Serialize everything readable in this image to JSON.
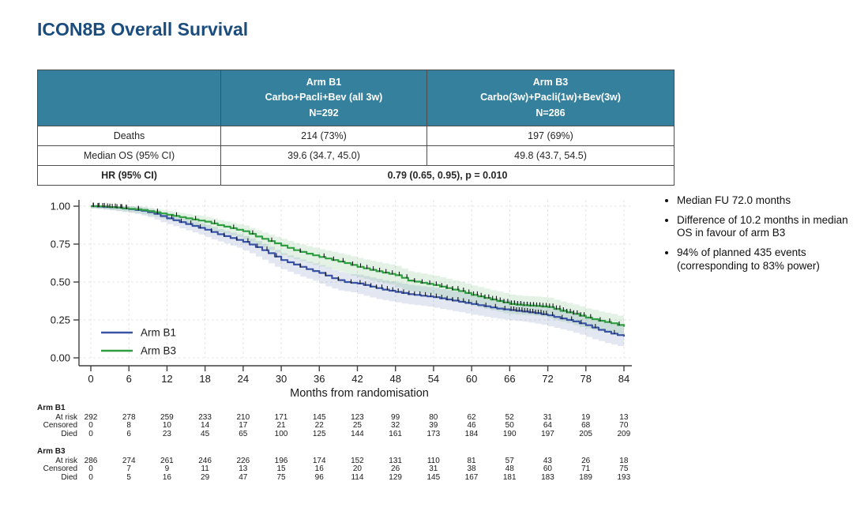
{
  "title": "ICON8B Overall Survival",
  "colors": {
    "title_blue": "#1a4c7d",
    "table_header_teal": "#35809d",
    "arm_b1_blue": "#3953a4",
    "arm_b3_green": "#2f9e41",
    "axis_gray": "#3f3f3f",
    "gridline_gray": "#e4e4e4"
  },
  "summary_table": {
    "col_headers": [
      {
        "arm": "Arm B1",
        "regimen": "Carbo+Pacli+Bev (all 3w)",
        "n": "N=292"
      },
      {
        "arm": "Arm B3",
        "regimen": "Carbo(3w)+Pacli(1w)+Bev(3w)",
        "n": "N=286"
      }
    ],
    "rows": [
      {
        "label": "Deaths",
        "b1": "214 (73%)",
        "b3": "197 (69%)"
      },
      {
        "label": "Median OS (95% CI)",
        "b1": "39.6 (34.7, 45.0)",
        "b3": "49.8 (43.7, 54.5)"
      },
      {
        "label": "HR (95% CI)",
        "combined": "0.79 (0.65, 0.95), p = 0.010"
      }
    ]
  },
  "chart_data": {
    "type": "line",
    "subtype": "kaplan-meier-step-curves-with-confidence-bands",
    "title": "",
    "xlabel": "Months from randomisation",
    "ylabel": "",
    "xlim": [
      0,
      84
    ],
    "ylim": [
      0,
      1
    ],
    "x_ticks": [
      0,
      6,
      12,
      18,
      24,
      30,
      36,
      42,
      48,
      54,
      60,
      66,
      72,
      78,
      84
    ],
    "y_ticks": [
      1.0,
      0.75,
      0.5,
      0.25,
      0.0
    ],
    "y_tick_labels": [
      "1.00",
      "0.75",
      "0.50",
      "0.25",
      "0.00"
    ],
    "grid": true,
    "legend_position": "inside-lower-left",
    "series": [
      {
        "name": "Arm B1",
        "color": "#3953a4",
        "band_opacity": 0.14,
        "x": [
          0,
          2,
          4,
          6,
          8,
          10,
          12,
          14,
          16,
          18,
          20,
          22,
          24,
          26,
          28,
          30,
          32,
          34,
          36,
          38,
          40,
          42,
          44,
          46,
          48,
          50,
          52,
          54,
          56,
          58,
          60,
          62,
          64,
          66,
          68,
          70,
          72,
          74,
          76,
          78,
          80,
          82,
          84
        ],
        "y": [
          1.0,
          0.995,
          0.99,
          0.98,
          0.97,
          0.95,
          0.92,
          0.895,
          0.87,
          0.845,
          0.815,
          0.79,
          0.765,
          0.73,
          0.69,
          0.645,
          0.615,
          0.585,
          0.56,
          0.525,
          0.5,
          0.49,
          0.47,
          0.45,
          0.435,
          0.42,
          0.41,
          0.4,
          0.385,
          0.37,
          0.355,
          0.34,
          0.325,
          0.315,
          0.305,
          0.295,
          0.28,
          0.26,
          0.24,
          0.215,
          0.185,
          0.16,
          0.14
        ]
      },
      {
        "name": "Arm B3",
        "color": "#2f9e41",
        "band_opacity": 0.13,
        "x": [
          0,
          2,
          4,
          6,
          8,
          10,
          12,
          14,
          16,
          18,
          20,
          22,
          24,
          26,
          28,
          30,
          32,
          34,
          36,
          38,
          40,
          42,
          44,
          46,
          48,
          50,
          52,
          54,
          56,
          58,
          60,
          62,
          64,
          66,
          68,
          70,
          72,
          74,
          76,
          78,
          80,
          82,
          84
        ],
        "y": [
          1.0,
          0.998,
          0.99,
          0.983,
          0.975,
          0.96,
          0.944,
          0.928,
          0.912,
          0.898,
          0.875,
          0.855,
          0.835,
          0.8,
          0.77,
          0.74,
          0.71,
          0.687,
          0.665,
          0.645,
          0.625,
          0.6,
          0.58,
          0.562,
          0.545,
          0.51,
          0.495,
          0.48,
          0.46,
          0.44,
          0.415,
          0.395,
          0.375,
          0.355,
          0.347,
          0.342,
          0.335,
          0.31,
          0.29,
          0.265,
          0.245,
          0.228,
          0.205
        ]
      }
    ]
  },
  "risk_table": {
    "time_points": [
      0,
      6,
      12,
      18,
      24,
      30,
      36,
      42,
      48,
      54,
      60,
      66,
      72,
      78,
      84
    ],
    "row_labels": [
      "At risk",
      "Censored",
      "Died"
    ],
    "groups": [
      {
        "name": "Arm B1",
        "at_risk": [
          292,
          278,
          259,
          233,
          210,
          171,
          145,
          123,
          99,
          80,
          62,
          52,
          31,
          19,
          13
        ],
        "censored": [
          0,
          8,
          10,
          14,
          17,
          21,
          22,
          25,
          32,
          39,
          46,
          50,
          64,
          68,
          70
        ],
        "died": [
          0,
          6,
          23,
          45,
          65,
          100,
          125,
          144,
          161,
          173,
          184,
          190,
          197,
          205,
          209
        ]
      },
      {
        "name": "Arm B3",
        "at_risk": [
          286,
          274,
          261,
          246,
          226,
          196,
          174,
          152,
          131,
          110,
          81,
          57,
          43,
          26,
          18
        ],
        "censored": [
          0,
          7,
          9,
          11,
          13,
          15,
          16,
          20,
          26,
          31,
          38,
          48,
          60,
          71,
          75
        ],
        "died": [
          0,
          5,
          16,
          29,
          47,
          75,
          96,
          114,
          129,
          145,
          167,
          181,
          183,
          189,
          193
        ]
      }
    ]
  },
  "bullets": [
    "Median FU 72.0 months",
    "Difference of 10.2 months in median OS in favour of arm B3",
    "94% of planned 435 events (corresponding to 83% power)"
  ]
}
